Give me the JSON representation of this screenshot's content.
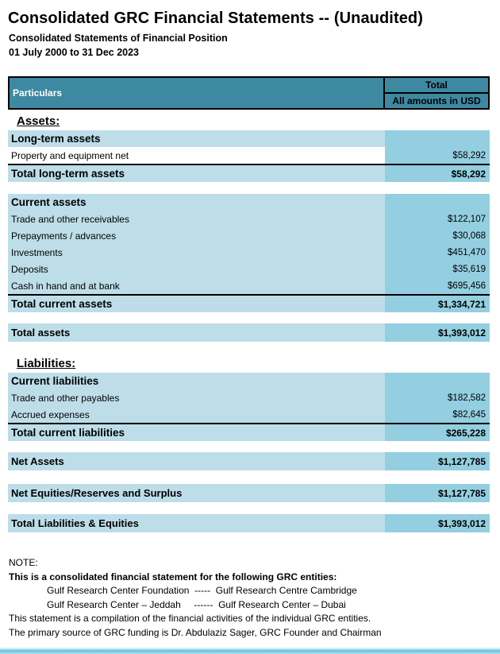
{
  "statement": {
    "title": "Consolidated GRC Financial Statements -- (Unaudited)",
    "subtitle": "Consolidated Statements of Financial Position",
    "period": "01 July 2000 to 31 Dec 2023",
    "columns": {
      "particulars": "Particulars",
      "total": "Total",
      "units": "All amounts in USD"
    },
    "assets": {
      "heading": "Assets:",
      "long_term": {
        "header": "Long-term assets",
        "rows": [
          {
            "label": "Property and equipment net",
            "value": "$58,292"
          }
        ],
        "total_label": "Total long-term assets",
        "total_value": "$58,292"
      },
      "current": {
        "header": "Current assets",
        "rows": [
          {
            "label": "Trade and other receivables",
            "value": "$122,107"
          },
          {
            "label": "Prepayments / advances",
            "value": "$30,068"
          },
          {
            "label": "Investments",
            "value": "$451,470"
          },
          {
            "label": "Deposits",
            "value": "$35,619"
          },
          {
            "label": "Cash in hand and at bank",
            "value": "$695,456"
          }
        ],
        "total_label": "Total current assets",
        "total_value": "$1,334,721"
      },
      "total_label": "Total assets",
      "total_value": "$1,393,012"
    },
    "liabilities": {
      "heading": "Liabilities:",
      "current": {
        "header": "Current liabilities",
        "rows": [
          {
            "label": "Trade and other payables",
            "value": "$182,582"
          },
          {
            "label": "Accrued expenses",
            "value": "$82,645"
          }
        ],
        "total_label": "Total current liabilities",
        "total_value": "$265,228"
      }
    },
    "summary": {
      "net_assets": {
        "label": "Net Assets",
        "value": "$1,127,785"
      },
      "net_equities": {
        "label": "Net Equities/Reserves and Surplus",
        "value": "$1,127,785"
      },
      "total_liabilities_equities": {
        "label": "Total Liabilities & Equities",
        "value": "$1,393,012"
      }
    },
    "note": {
      "heading": "NOTE:",
      "intro_bold": "This is a consolidated financial statement for the following GRC entities:",
      "entities_row1": "Gulf Research Center Foundation  -----  Gulf Research Centre Cambridge",
      "entities_row2": "Gulf Research Center – Jeddah     ------  Gulf Research Center – Dubai",
      "compilation_line": "This statement is a compilation of the financial activities of the individual GRC entities.",
      "funding_line": "The primary source of GRC funding is Dr. Abdulaziz Sager, GRC Founder and Chairman"
    },
    "colors": {
      "header_teal": "#3e89a2",
      "row_light_blue": "#bddee9",
      "value_column_blue": "#93cfe0",
      "footer_cyan": "#5ec0dc"
    }
  }
}
